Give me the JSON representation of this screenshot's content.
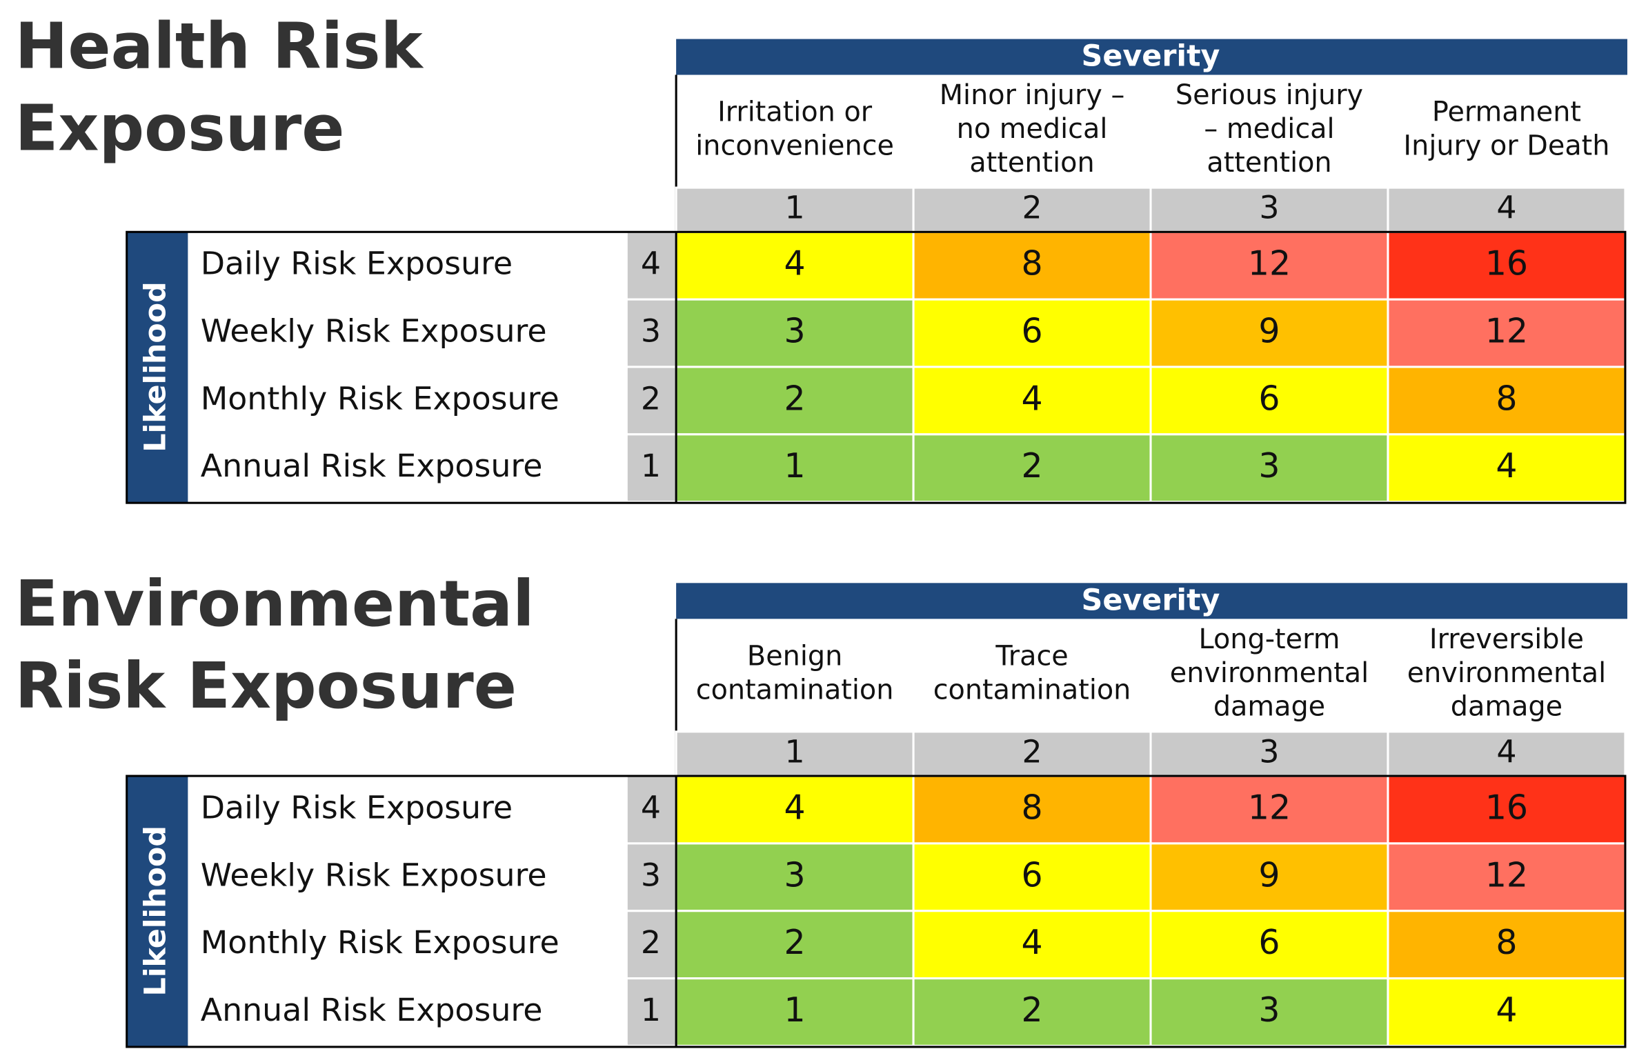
{
  "tables": [
    {
      "title_lines": [
        "Health Risk",
        "Exposure"
      ],
      "severity_label": "Severity",
      "column_labels": [
        [
          "Irritation or",
          "inconvenience"
        ],
        [
          "Minor injury –",
          "no medical",
          "attention"
        ],
        [
          "Serious injury",
          "– medical",
          "attention"
        ],
        [
          "Permanent",
          "Injury or Death"
        ]
      ],
      "column_numbers": [
        1,
        2,
        3,
        4
      ],
      "likelihood_label": "Likelihood",
      "row_labels": [
        "Daily Risk Exposure",
        "Weekly Risk Exposure",
        "Monthly Risk Exposure",
        "Annual Risk Exposure"
      ],
      "row_numbers": [
        4,
        3,
        2,
        1
      ],
      "cells": [
        [
          4,
          8,
          12,
          16
        ],
        [
          3,
          6,
          9,
          12
        ],
        [
          2,
          4,
          6,
          8
        ],
        [
          1,
          2,
          3,
          4
        ]
      ],
      "cell_colors": [
        [
          "#ffff00",
          "#ffb400",
          "#ff7060",
          "#ff3218"
        ],
        [
          "#92d050",
          "#ffff00",
          "#ffc000",
          "#ff7060"
        ],
        [
          "#92d050",
          "#ffff00",
          "#ffff00",
          "#ffb400"
        ],
        [
          "#92d050",
          "#92d050",
          "#92d050",
          "#ffff00"
        ]
      ]
    },
    {
      "title_lines": [
        "Environmental",
        "Risk Exposure"
      ],
      "severity_label": "Severity",
      "column_labels": [
        [
          "Benign",
          "contamination"
        ],
        [
          "Trace",
          "contamination"
        ],
        [
          "Long-term",
          "environmental",
          "damage"
        ],
        [
          "Irreversible",
          "environmental",
          "damage"
        ]
      ],
      "column_numbers": [
        1,
        2,
        3,
        4
      ],
      "likelihood_label": "Likelihood",
      "row_labels": [
        "Daily Risk Exposure",
        "Weekly Risk Exposure",
        "Monthly Risk Exposure",
        "Annual Risk Exposure"
      ],
      "row_numbers": [
        4,
        3,
        2,
        1
      ],
      "cells": [
        [
          4,
          8,
          12,
          16
        ],
        [
          3,
          6,
          9,
          12
        ],
        [
          2,
          4,
          6,
          8
        ],
        [
          1,
          2,
          3,
          4
        ]
      ],
      "cell_colors": [
        [
          "#ffff00",
          "#ffb400",
          "#ff7060",
          "#ff3218"
        ],
        [
          "#92d050",
          "#ffff00",
          "#ffc000",
          "#ff7060"
        ],
        [
          "#92d050",
          "#ffff00",
          "#ffff00",
          "#ffb400"
        ],
        [
          "#92d050",
          "#92d050",
          "#92d050",
          "#ffff00"
        ]
      ]
    }
  ]
}
